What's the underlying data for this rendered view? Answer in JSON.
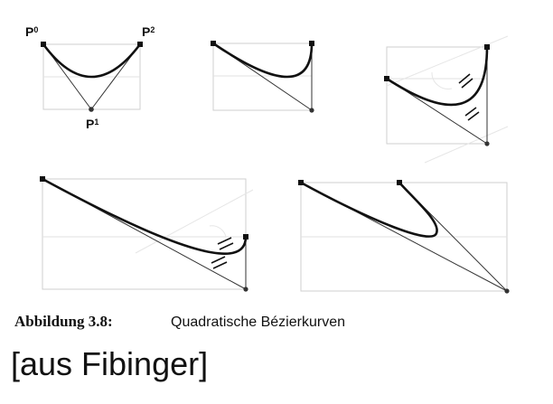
{
  "labels": {
    "p0": "P",
    "p0_sub": "0",
    "p1": "P",
    "p1_sub": "1",
    "p2": "P",
    "p2_sub": "2"
  },
  "caption": {
    "label": "Abbildung 3.8:",
    "text": "Quadratische Bézierkurven"
  },
  "source": "[aus Fibinger]"
}
